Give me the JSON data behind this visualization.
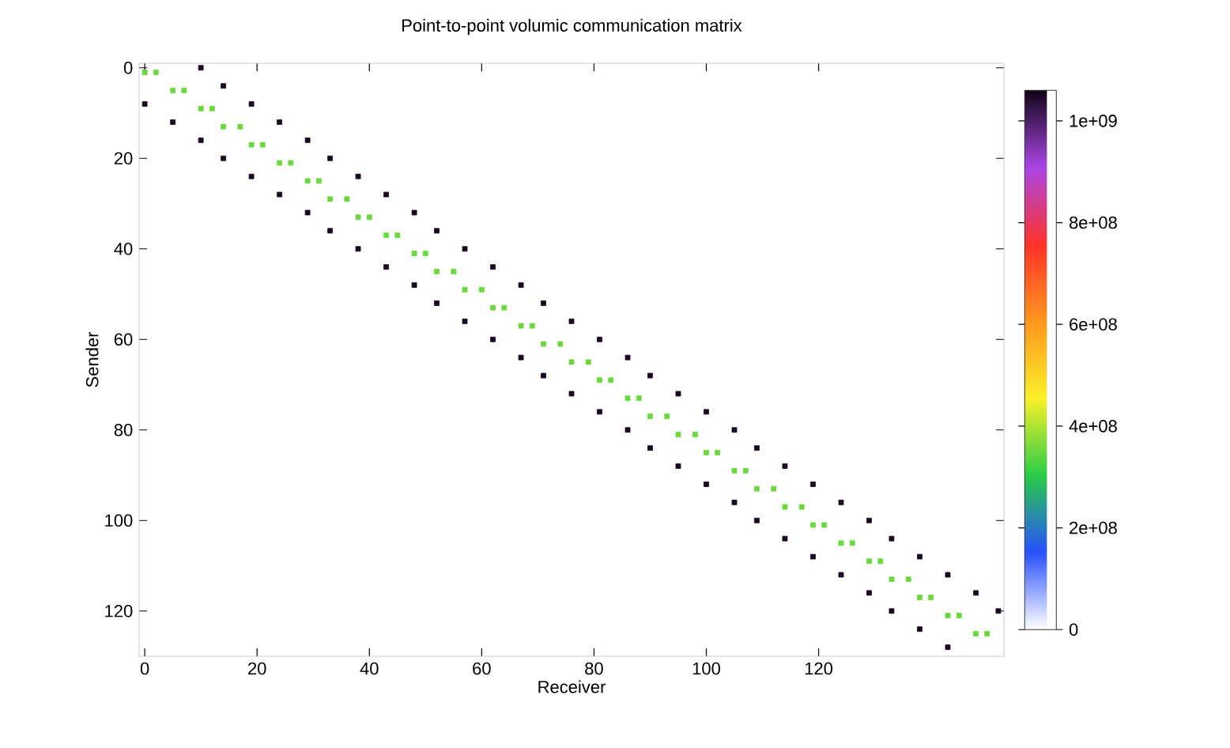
{
  "chart_data": {
    "type": "scatter",
    "title": "Point-to-point volumic communication matrix",
    "xlabel": "Receiver",
    "ylabel": "Sender",
    "xlim": [
      -1,
      153
    ],
    "ylim": [
      130,
      -1
    ],
    "xticks": [
      0,
      20,
      40,
      60,
      80,
      100,
      120
    ],
    "yticks": [
      0,
      20,
      40,
      60,
      80,
      100,
      120
    ],
    "clim": [
      0,
      1060000000
    ],
    "cticks": [
      {
        "value": 0,
        "label": "0"
      },
      {
        "value": 200000000,
        "label": "2e+08"
      },
      {
        "value": 400000000,
        "label": "4e+08"
      },
      {
        "value": 600000000,
        "label": "6e+08"
      },
      {
        "value": 800000000,
        "label": "8e+08"
      },
      {
        "value": 1000000000,
        "label": "1e+09"
      }
    ],
    "marker": "square",
    "series": [
      {
        "x": [
          10,
          14,
          19,
          24,
          29,
          33,
          38,
          43,
          48,
          52,
          57,
          62,
          67,
          71,
          76,
          81,
          86,
          90,
          95,
          100,
          105,
          109,
          114,
          119,
          124,
          129,
          133,
          138,
          143,
          148,
          152
        ],
        "values": [
          0,
          4,
          8,
          12,
          16,
          20,
          24,
          28,
          32,
          36,
          40,
          44,
          48,
          52,
          56,
          60,
          64,
          68,
          72,
          76,
          80,
          84,
          88,
          92,
          96,
          100,
          104,
          108,
          112,
          116,
          120
        ],
        "cvalues": [
          1050000000,
          1050000000,
          1050000000,
          1050000000,
          1050000000,
          1050000000,
          1050000000,
          1050000000,
          1050000000,
          1050000000,
          1050000000,
          1050000000,
          1050000000,
          1050000000,
          1050000000,
          1050000000,
          1050000000,
          1050000000,
          1050000000,
          1050000000,
          1050000000,
          1050000000,
          1050000000,
          1050000000,
          1050000000,
          1050000000,
          1050000000,
          1050000000,
          1050000000,
          1050000000,
          1050000000
        ]
      },
      {
        "x": [
          0,
          5,
          10,
          14,
          19,
          24,
          29,
          33,
          38,
          43,
          48,
          52,
          57,
          62,
          67,
          71,
          76,
          81,
          86,
          90,
          95,
          100,
          105,
          109,
          114,
          119,
          124,
          129,
          133,
          138,
          143
        ],
        "values": [
          8,
          12,
          16,
          20,
          24,
          28,
          32,
          36,
          40,
          44,
          48,
          52,
          56,
          60,
          64,
          68,
          72,
          76,
          80,
          84,
          88,
          92,
          96,
          100,
          104,
          108,
          112,
          116,
          120,
          124,
          128
        ],
        "cvalues": [
          1050000000,
          1050000000,
          1050000000,
          1050000000,
          1050000000,
          1050000000,
          1050000000,
          1050000000,
          1050000000,
          1050000000,
          1050000000,
          1050000000,
          1050000000,
          1050000000,
          1050000000,
          1050000000,
          1050000000,
          1050000000,
          1050000000,
          1050000000,
          1050000000,
          1050000000,
          1050000000,
          1050000000,
          1050000000,
          1050000000,
          1050000000,
          1050000000,
          1050000000,
          1050000000,
          1050000000
        ]
      },
      {
        "x": [
          2,
          0,
          7,
          5,
          12,
          10,
          17,
          14,
          21,
          19,
          26,
          24,
          31,
          29,
          36,
          33,
          40,
          38,
          45,
          43,
          50,
          48,
          55,
          52,
          60,
          57,
          64,
          62,
          69,
          67,
          74,
          71,
          79,
          76,
          83,
          81,
          88,
          86,
          93,
          90,
          98,
          95,
          102,
          100,
          107,
          105,
          112,
          109,
          117,
          114,
          121,
          119,
          126,
          124,
          131,
          129,
          136,
          133,
          140,
          138,
          145,
          143,
          150,
          148
        ],
        "values": [
          1,
          1,
          5,
          5,
          9,
          9,
          13,
          13,
          17,
          17,
          21,
          21,
          25,
          25,
          29,
          29,
          33,
          33,
          37,
          37,
          41,
          41,
          45,
          45,
          49,
          49,
          53,
          53,
          57,
          57,
          61,
          61,
          65,
          65,
          69,
          69,
          73,
          73,
          77,
          77,
          81,
          81,
          85,
          85,
          89,
          89,
          93,
          93,
          97,
          97,
          101,
          101,
          105,
          105,
          109,
          109,
          113,
          113,
          117,
          117,
          121,
          121,
          125,
          125
        ],
        "cvalues": [
          350000000,
          350000000,
          350000000,
          350000000,
          350000000,
          350000000,
          350000000,
          350000000,
          350000000,
          350000000,
          350000000,
          350000000,
          350000000,
          350000000,
          350000000,
          350000000,
          350000000,
          350000000,
          350000000,
          350000000,
          350000000,
          350000000,
          350000000,
          350000000,
          350000000,
          350000000,
          350000000,
          350000000,
          350000000,
          350000000,
          350000000,
          350000000,
          350000000,
          350000000,
          350000000,
          350000000,
          350000000,
          350000000,
          350000000,
          350000000,
          350000000,
          350000000,
          350000000,
          350000000,
          350000000,
          350000000,
          350000000,
          350000000,
          350000000,
          350000000,
          350000000,
          350000000,
          350000000,
          350000000,
          350000000,
          350000000,
          350000000,
          350000000,
          350000000,
          350000000,
          350000000,
          350000000,
          350000000,
          350000000
        ]
      }
    ]
  }
}
